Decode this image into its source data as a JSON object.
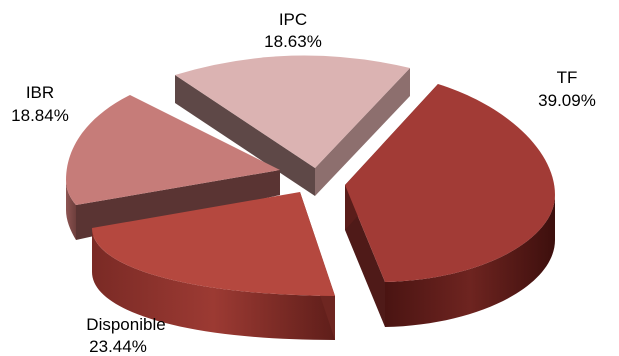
{
  "chart_data": {
    "type": "pie",
    "title": "",
    "slices": [
      {
        "name": "TF",
        "value": 39.09,
        "label": "39.09%",
        "color": "#a23b36",
        "side": "#4f1a18"
      },
      {
        "name": "Disponible",
        "value": 23.44,
        "label": "23.44%",
        "color": "#b5483f",
        "side": "#6e2621"
      },
      {
        "name": "IBR",
        "value": 18.84,
        "label": "18.84%",
        "color": "#c67c79",
        "side": "#5a3433"
      },
      {
        "name": "IPC",
        "value": 18.63,
        "label": "18.63%",
        "color": "#dbb3b2",
        "side": "#6a5453"
      }
    ]
  }
}
